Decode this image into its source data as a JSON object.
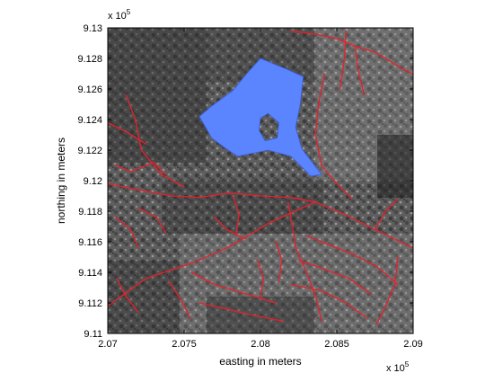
{
  "colors": {
    "background": "#ffffff",
    "axis": "#000000",
    "water": "#5b84ff",
    "water_edge": "#3a5fe0",
    "roads": "#e8202a",
    "imagery_dark": "#3a3a3a",
    "imagery_light": "#9a9a9a"
  },
  "map": {
    "layers": [
      {
        "name": "aerial-orthophoto",
        "type": "grayscale-raster"
      },
      {
        "name": "water-body",
        "type": "polygon",
        "color": "#5b84ff"
      },
      {
        "name": "road-network",
        "type": "polyline",
        "color": "#e8202a"
      }
    ]
  },
  "chart_data": {
    "type": "map",
    "title": "",
    "xlabel": "easting in meters",
    "ylabel": "northing in meters",
    "x_exponent_label": "x 10",
    "x_exponent": "5",
    "y_exponent_label": "x 10",
    "y_exponent": "5",
    "xlim": [
      207000,
      209000
    ],
    "ylim": [
      911000,
      913000
    ],
    "xticks": [
      207000,
      207500,
      208000,
      208500,
      209000
    ],
    "xtick_labels": [
      "2.07",
      "2.075",
      "2.08",
      "2.085",
      "2.09"
    ],
    "yticks": [
      911000,
      911200,
      911400,
      911600,
      911800,
      912000,
      912200,
      912400,
      912600,
      912800,
      913000
    ],
    "ytick_labels": [
      "9.11",
      "9.112",
      "9.114",
      "9.116",
      "9.118",
      "9.12",
      "9.122",
      "9.124",
      "9.126",
      "9.128",
      "9.13"
    ],
    "grid": false,
    "legend": false,
    "water_polygon": [
      [
        208000,
        912800
      ],
      [
        208170,
        912730
      ],
      [
        208280,
        912680
      ],
      [
        208260,
        912500
      ],
      [
        208230,
        912350
      ],
      [
        208270,
        912210
      ],
      [
        208400,
        912040
      ],
      [
        208330,
        912030
      ],
      [
        208200,
        912160
      ],
      [
        208050,
        912200
      ],
      [
        207850,
        912160
      ],
      [
        207760,
        912220
      ],
      [
        207680,
        912280
      ],
      [
        207600,
        912420
      ],
      [
        207670,
        912480
      ],
      [
        207820,
        912590
      ],
      [
        207910,
        912700
      ]
    ],
    "water_island": [
      [
        208050,
        912440
      ],
      [
        208120,
        912380
      ],
      [
        208110,
        912280
      ],
      [
        208030,
        912260
      ],
      [
        207990,
        912330
      ],
      [
        208000,
        912410
      ]
    ],
    "roads": [
      [
        [
          207000,
          911980
        ],
        [
          207200,
          911940
        ],
        [
          207420,
          911900
        ],
        [
          207600,
          911890
        ],
        [
          207800,
          911920
        ],
        [
          208000,
          911900
        ],
        [
          208200,
          911890
        ],
        [
          208360,
          911860
        ]
      ],
      [
        [
          208360,
          911860
        ],
        [
          208550,
          911780
        ],
        [
          208750,
          911680
        ],
        [
          209000,
          911560
        ]
      ],
      [
        [
          208180,
          911860
        ],
        [
          208210,
          911700
        ],
        [
          208230,
          911560
        ],
        [
          208300,
          911400
        ],
        [
          208360,
          911250
        ],
        [
          208400,
          911080
        ]
      ],
      [
        [
          207000,
          911180
        ],
        [
          207250,
          911360
        ],
        [
          207550,
          911460
        ],
        [
          207780,
          911560
        ],
        [
          207920,
          911640
        ],
        [
          208050,
          911720
        ],
        [
          208180,
          911780
        ],
        [
          208360,
          911860
        ]
      ],
      [
        [
          207120,
          912560
        ],
        [
          207180,
          912400
        ],
        [
          207220,
          912200
        ],
        [
          207350,
          912040
        ],
        [
          207500,
          911960
        ]
      ],
      [
        [
          207000,
          912380
        ],
        [
          207120,
          912320
        ],
        [
          207250,
          912240
        ]
      ],
      [
        [
          207050,
          912100
        ],
        [
          207150,
          912060
        ],
        [
          207300,
          912120
        ],
        [
          207380,
          912040
        ]
      ],
      [
        [
          207200,
          911820
        ],
        [
          207320,
          911760
        ],
        [
          207380,
          911660
        ]
      ],
      [
        [
          207050,
          911760
        ],
        [
          207150,
          911680
        ],
        [
          207200,
          911560
        ]
      ],
      [
        [
          208200,
          912980
        ],
        [
          208350,
          912960
        ],
        [
          208500,
          912930
        ],
        [
          208620,
          912880
        ],
        [
          208750,
          912840
        ],
        [
          208850,
          912780
        ],
        [
          208950,
          912720
        ],
        [
          209000,
          912700
        ]
      ],
      [
        [
          208420,
          912700
        ],
        [
          208380,
          912500
        ],
        [
          208360,
          912300
        ],
        [
          208400,
          912100
        ]
      ],
      [
        [
          208560,
          912980
        ],
        [
          208550,
          912800
        ],
        [
          208520,
          912600
        ]
      ],
      [
        [
          208620,
          912880
        ],
        [
          208640,
          912720
        ],
        [
          208680,
          912560
        ]
      ],
      [
        [
          208400,
          912100
        ],
        [
          208500,
          911980
        ],
        [
          208600,
          911880
        ]
      ],
      [
        [
          207550,
          911400
        ],
        [
          207700,
          911320
        ],
        [
          207900,
          911260
        ],
        [
          208100,
          911200
        ]
      ],
      [
        [
          207600,
          911200
        ],
        [
          207780,
          911160
        ],
        [
          207950,
          911120
        ],
        [
          208150,
          911080
        ]
      ],
      [
        [
          208300,
          911640
        ],
        [
          208450,
          911580
        ],
        [
          208600,
          911520
        ],
        [
          208760,
          911440
        ],
        [
          208900,
          911320
        ]
      ],
      [
        [
          208250,
          911480
        ],
        [
          208420,
          911420
        ],
        [
          208580,
          911360
        ],
        [
          208720,
          911260
        ]
      ],
      [
        [
          208200,
          911320
        ],
        [
          208400,
          911280
        ],
        [
          208560,
          911200
        ],
        [
          208700,
          911100
        ]
      ],
      [
        [
          208900,
          911500
        ],
        [
          208880,
          911320
        ],
        [
          208820,
          911180
        ],
        [
          208760,
          911060
        ]
      ],
      [
        [
          207400,
          911340
        ],
        [
          207480,
          911220
        ],
        [
          207540,
          911100
        ]
      ],
      [
        [
          207060,
          911360
        ],
        [
          207120,
          911240
        ],
        [
          207200,
          911140
        ]
      ],
      [
        [
          208750,
          911680
        ],
        [
          208820,
          911800
        ],
        [
          208900,
          911880
        ]
      ],
      [
        [
          207700,
          911760
        ],
        [
          207780,
          911680
        ],
        [
          207900,
          911620
        ]
      ],
      [
        [
          207820,
          911900
        ],
        [
          207860,
          911780
        ],
        [
          207840,
          911640
        ]
      ],
      [
        [
          207980,
          911480
        ],
        [
          208020,
          911360
        ],
        [
          208000,
          911240
        ]
      ],
      [
        [
          208100,
          911600
        ],
        [
          208140,
          911480
        ],
        [
          208120,
          911340
        ]
      ]
    ]
  }
}
